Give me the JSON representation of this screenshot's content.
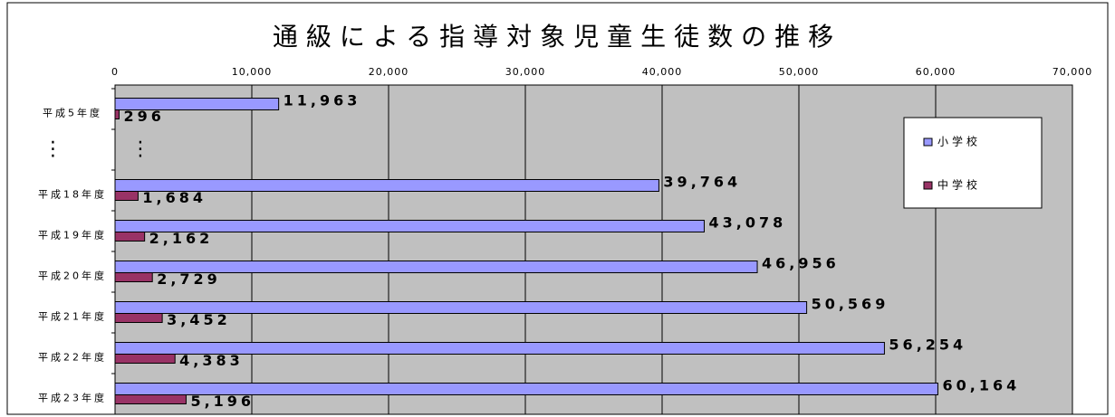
{
  "chart_data": {
    "type": "hbar",
    "title": "通級による指導対象児童生徒数の推移",
    "categories": [
      "平成5年度",
      "⋮",
      "平成18年度",
      "平成19年度",
      "平成20年度",
      "平成21年度",
      "平成22年度",
      "平成23年度"
    ],
    "series": [
      {
        "name": "小学校",
        "color": "#9999ff",
        "values": [
          11963,
          null,
          39764,
          43078,
          46956,
          50569,
          56254,
          60164
        ],
        "value_labels": [
          "11,963",
          null,
          "39,764",
          "43,078",
          "46,956",
          "50,569",
          "56,254",
          "60,164"
        ]
      },
      {
        "name": "中学校",
        "color": "#993366",
        "values": [
          296,
          null,
          1684,
          2162,
          2729,
          3452,
          4383,
          5196
        ],
        "value_labels": [
          "296",
          null,
          "1,684",
          "2,162",
          "2,729",
          "3,452",
          "4,383",
          "5,196"
        ]
      }
    ],
    "annotation": "⋮",
    "xlim": [
      0,
      70000
    ],
    "xticks": [
      0,
      {
        "value": 10000,
        "label": "10,000"
      },
      {
        "value": 20000,
        "label": "20,000"
      },
      {
        "value": 30000,
        "label": "30,000"
      },
      {
        "value": 40000,
        "label": "40,000"
      },
      {
        "value": 50000,
        "label": "50,000"
      },
      {
        "value": 60000,
        "label": "60,000"
      },
      {
        "value": 70000,
        "label": "70,000"
      }
    ],
    "grid": true,
    "legend": "right",
    "plot_background": "#c0c0c0"
  }
}
